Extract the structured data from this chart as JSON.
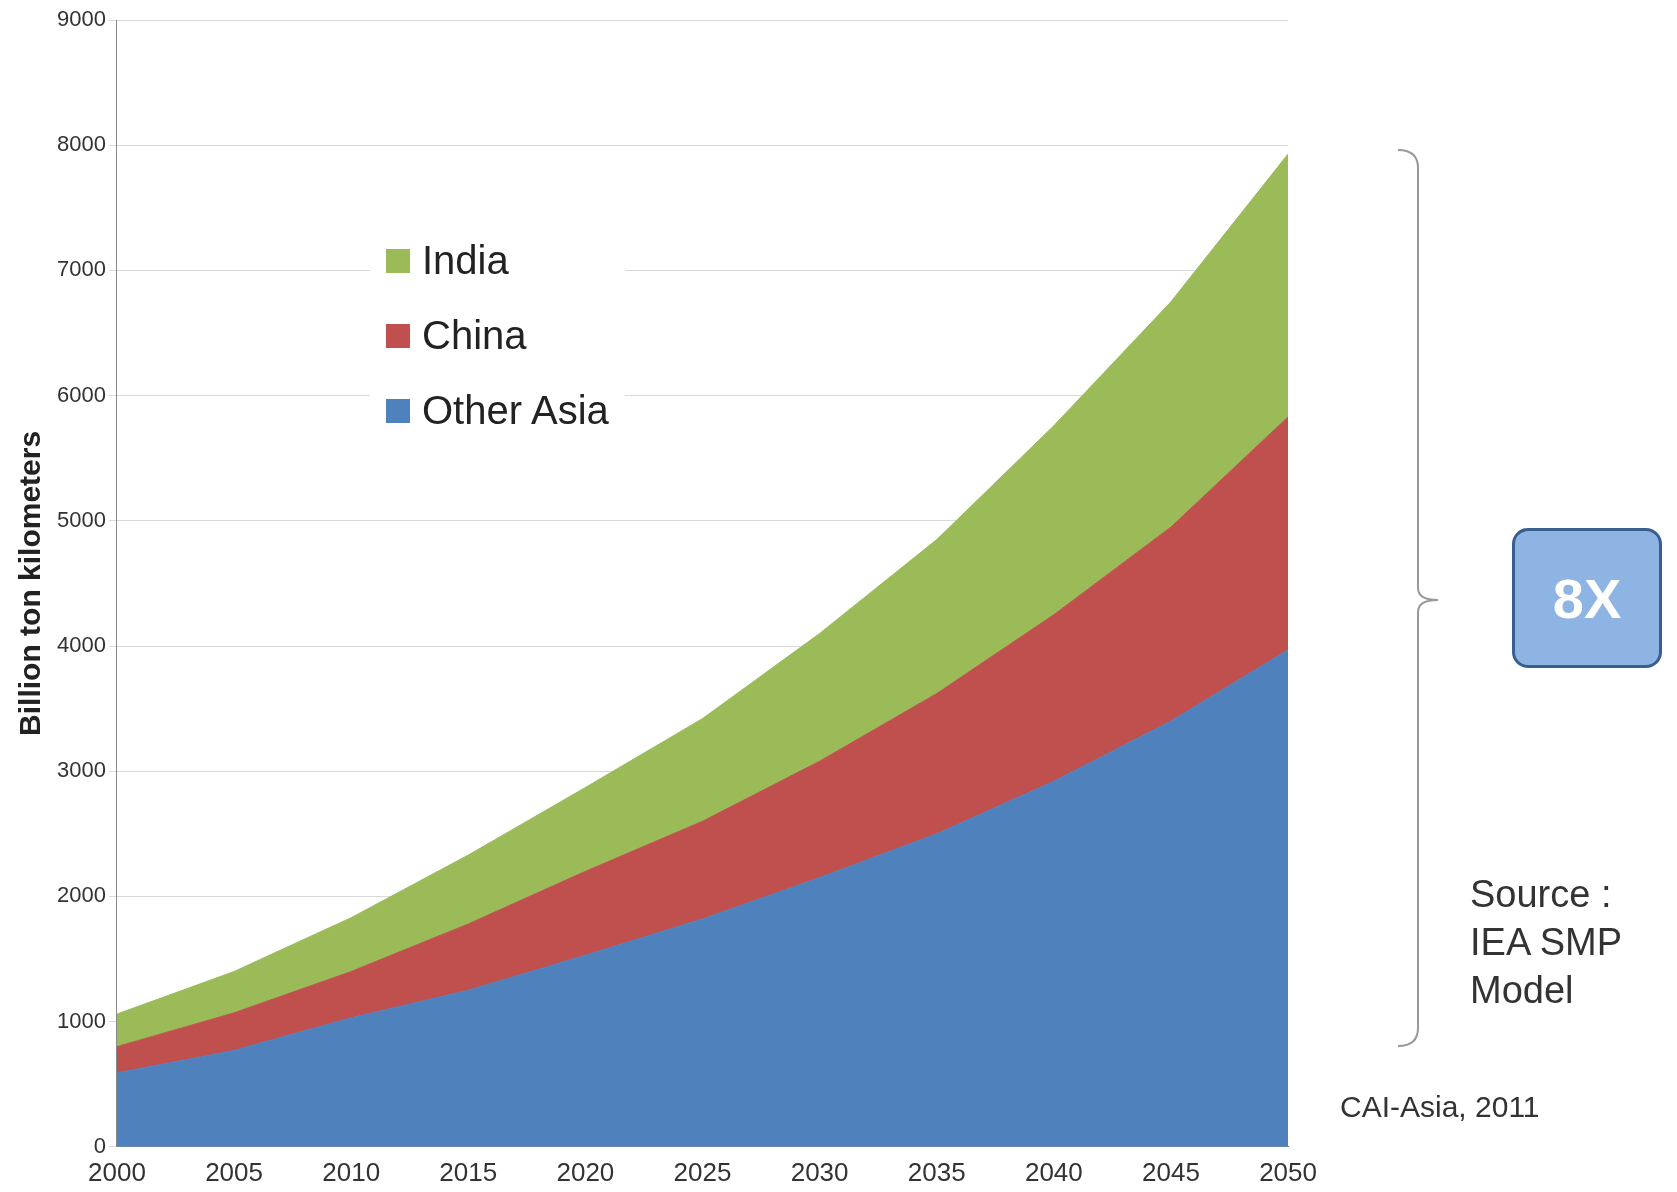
{
  "chart_data": {
    "type": "area",
    "stacked": true,
    "ylabel": "Billion ton kilometers",
    "x": [
      2000,
      2005,
      2010,
      2015,
      2020,
      2025,
      2030,
      2035,
      2040,
      2045,
      2050
    ],
    "series": [
      {
        "name": "Other Asia",
        "color": "#4f81bd",
        "values": [
          590,
          770,
          1030,
          1250,
          1530,
          1820,
          2150,
          2500,
          2920,
          3400,
          3970
        ]
      },
      {
        "name": "China",
        "color": "#c0504d",
        "values": [
          210,
          300,
          370,
          530,
          670,
          780,
          930,
          1120,
          1330,
          1550,
          1860
        ]
      },
      {
        "name": "India",
        "color": "#9bbb59",
        "values": [
          260,
          330,
          430,
          550,
          670,
          820,
          1020,
          1230,
          1510,
          1800,
          2100
        ]
      }
    ],
    "xlim": [
      2000,
      2050
    ],
    "xticks": [
      2000,
      2005,
      2010,
      2015,
      2020,
      2025,
      2030,
      2035,
      2040,
      2045,
      2050
    ],
    "ylim": [
      0,
      9000
    ],
    "yticks": [
      0,
      1000,
      2000,
      3000,
      4000,
      5000,
      6000,
      7000,
      8000,
      9000
    ],
    "grid": "y",
    "legend": "top left",
    "annotations": [
      "8X",
      "Source : IEA SMP Model",
      "CAI-Asia, 2011"
    ]
  }
}
